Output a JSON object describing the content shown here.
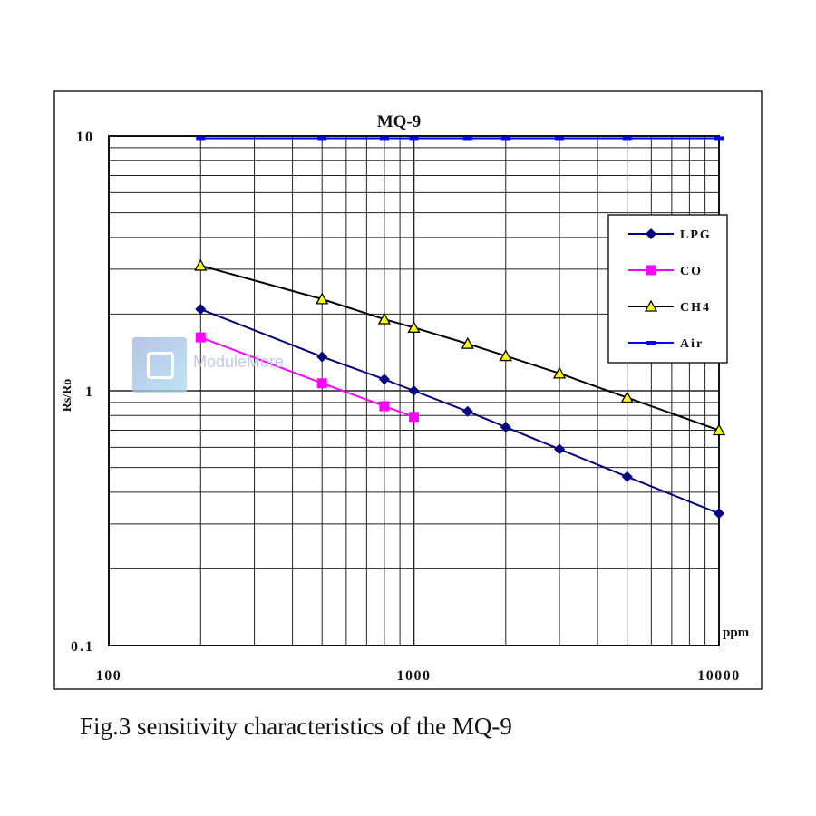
{
  "chart_data": {
    "type": "line",
    "title": "MQ-9",
    "xlabel": "ppm",
    "ylabel": "Rs/Ro",
    "xscale": "log",
    "yscale": "log",
    "xlim": [
      100,
      10000
    ],
    "ylim": [
      0.1,
      10
    ],
    "x_ticks": [
      "100",
      "1000",
      "10000"
    ],
    "y_ticks": [
      "0.1",
      "1",
      "10"
    ],
    "grid": true,
    "legend": "right",
    "series": [
      {
        "name": "LPG",
        "color": "#000080",
        "marker": "diamond",
        "x": [
          200,
          500,
          800,
          1000,
          1500,
          2000,
          3000,
          5000,
          10000
        ],
        "y": [
          2.09,
          1.36,
          1.11,
          1.0,
          0.83,
          0.72,
          0.59,
          0.46,
          0.33
        ]
      },
      {
        "name": "CO",
        "color": "#ff00ff",
        "marker": "square",
        "x": [
          200,
          500,
          800,
          1000
        ],
        "y": [
          1.62,
          1.07,
          0.87,
          0.79
        ]
      },
      {
        "name": "CH4",
        "color": "#000000",
        "marker": "triangle",
        "x": [
          200,
          500,
          800,
          1000,
          1500,
          2000,
          3000,
          5000,
          10000
        ],
        "y": [
          3.1,
          2.29,
          1.91,
          1.77,
          1.53,
          1.37,
          1.17,
          0.94,
          0.7
        ]
      },
      {
        "name": "Air",
        "color": "#0000ff",
        "marker": "dash",
        "x": [
          200,
          500,
          800,
          1000,
          1500,
          2000,
          3000,
          5000,
          10000
        ],
        "y": [
          9.8,
          9.8,
          9.8,
          9.8,
          9.8,
          9.8,
          9.8,
          9.8,
          9.8
        ]
      }
    ]
  },
  "caption": "Fig.3 sensitivity characteristics of the MQ-9",
  "watermark": "ModuleMore"
}
